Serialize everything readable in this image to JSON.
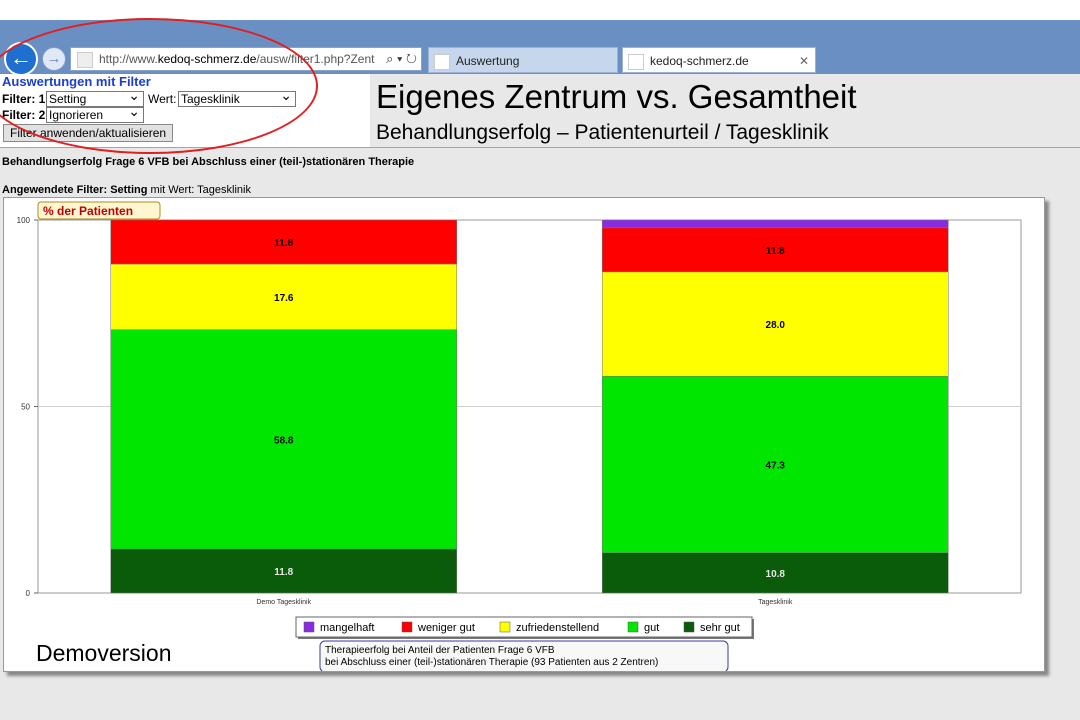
{
  "browser": {
    "url_prefix": "http://www.",
    "url_domain": "kedoq-schmerz.de",
    "url_rest": "/ausw/filter1.php?Zent",
    "tabs": [
      {
        "title": "Auswertung"
      },
      {
        "title": "kedoq-schmerz.de",
        "close": "✕"
      }
    ],
    "icons": {
      "back": "←",
      "forward": "→",
      "search": "⌕",
      "refresh": "↻"
    }
  },
  "filter_panel": {
    "title": "Auswertungen mit Filter",
    "filter1_label": "Filter: 1",
    "filter1_value": "Setting",
    "wert_label": "Wert:",
    "wert_value": "Tagesklinik",
    "filter2_label": "Filter: 2",
    "filter2_value": "Ignorieren",
    "apply_button": "Filter anwenden/aktualisieren"
  },
  "slide": {
    "title": "Eigenes Zentrum vs. Gesamtheit",
    "subtitle": "Behandlungserfolg – Patientenurteil / Tagesklinik",
    "watermark": "Demoversion"
  },
  "page": {
    "question": "Behandlungserfolg Frage 6 VFB bei Abschluss einer (teil-)stationären Therapie",
    "applied_prefix": "Angewendete Filter:",
    "applied_filter": "Setting",
    "applied_suffix": "mit Wert: Tagesklinik"
  },
  "chart_data": {
    "type": "bar",
    "stacked": true,
    "title": "% der Patienten",
    "categories": [
      "Demo Tagesklinik",
      "Tagesklinik"
    ],
    "ylim": [
      0,
      100
    ],
    "yticks": [
      0,
      50,
      100
    ],
    "series": [
      {
        "name": "sehr gut",
        "color": "#0a5c0a",
        "values": [
          11.8,
          10.8
        ],
        "labels": [
          "11.8",
          "10.8"
        ]
      },
      {
        "name": "gut",
        "color": "#00e600",
        "values": [
          58.8,
          47.3
        ],
        "labels": [
          "58.8",
          "47.3"
        ]
      },
      {
        "name": "zufriedenstellend",
        "color": "#ffff00",
        "values": [
          17.6,
          28.0
        ],
        "labels": [
          "17.6",
          "28.0"
        ]
      },
      {
        "name": "weniger gut",
        "color": "#ff0000",
        "values": [
          11.8,
          11.8
        ],
        "labels": [
          "11.8",
          "11.8"
        ]
      },
      {
        "name": "mangelhaft",
        "color": "#8a2be2",
        "values": [
          0,
          2.1
        ],
        "labels": [
          "",
          ""
        ]
      }
    ],
    "legend_order": [
      "mangelhaft",
      "weniger gut",
      "zufriedenstellend",
      "gut",
      "sehr gut"
    ],
    "legend_placement": "bottom",
    "note_lines": [
      "Therapieerfolg bei Anteil der Patienten Frage 6 VFB",
      "bei Abschluss einer (teil-)stationären Therapie (93 Patienten aus 2 Zentren)"
    ]
  }
}
